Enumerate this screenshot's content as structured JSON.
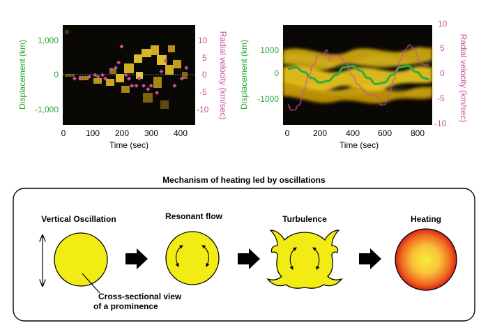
{
  "chart_data": [
    {
      "type": "scatter",
      "xlabel": "Time (sec)",
      "ylabel_left": "Displacement (km)",
      "ylabel_right": "Radial velocity (km/sec)",
      "x_ticks": [
        "0",
        "100",
        "200",
        "300",
        "400"
      ],
      "y_left_ticks": [
        "1,000",
        "0",
        "-1,000"
      ],
      "y_right_ticks": [
        "10",
        "5",
        "0",
        "-5",
        "-10"
      ],
      "xlim": [
        0,
        450
      ],
      "ylim_left": [
        -1400,
        1400
      ],
      "ylim_right": [
        -14,
        14
      ],
      "series": [
        {
          "x": [
            40,
            60,
            90,
            110,
            120,
            135,
            145,
            165,
            180,
            190,
            200,
            215,
            225,
            235,
            250,
            260,
            275,
            290,
            300,
            320,
            335,
            350,
            380,
            405,
            420
          ],
          "y": [
            -1,
            -1,
            -0.5,
            0,
            -0.5,
            0,
            -1,
            1.5,
            2,
            3.5,
            8,
            0,
            -1,
            -3,
            -3,
            -1,
            -3,
            -4,
            -3,
            -5,
            1,
            4,
            -3,
            -1,
            2
          ]
        }
      ]
    },
    {
      "type": "line",
      "xlabel": "Time (sec)",
      "ylabel_left": "Displacement (km)",
      "ylabel_right": "Radial velocity (km/sec)",
      "x_ticks": [
        "0",
        "200",
        "400",
        "600",
        "800"
      ],
      "y_left_ticks": [
        "1000",
        "0",
        "-1000"
      ],
      "y_right_ticks": [
        "10",
        "5",
        "0",
        "-5",
        "-10"
      ],
      "xlim": [
        -30,
        900
      ],
      "ylim_left": [
        -1650,
        1650
      ],
      "ylim_right": [
        -10,
        10
      ],
      "series": [
        {
          "x": [
            0,
            20,
            40,
            70,
            100,
            130,
            160,
            190,
            220,
            240,
            260,
            280,
            300,
            330,
            360,
            400,
            440,
            470,
            500,
            520,
            540,
            560,
            580,
            600,
            620,
            640,
            660,
            680,
            700,
            730,
            760,
            790,
            820,
            850,
            880
          ],
          "y": [
            -6,
            -7,
            -7,
            -6,
            -3,
            0,
            2,
            4,
            4,
            5,
            3,
            4,
            4,
            3.5,
            2.5,
            0,
            -2,
            -3,
            -4,
            -4,
            -4,
            -4.5,
            -6,
            -6,
            -5,
            -3,
            -1,
            1,
            3,
            5,
            6,
            5,
            3,
            2,
            2
          ]
        },
        {
          "x": [
            0,
            50,
            100,
            150,
            200,
            250,
            300,
            350,
            400,
            450,
            500,
            550,
            600,
            650,
            700,
            750,
            800,
            850,
            880
          ],
          "y": [
            200,
            250,
            100,
            -100,
            -250,
            -200,
            0,
            250,
            300,
            150,
            -100,
            -300,
            -250,
            0,
            250,
            300,
            100,
            -100,
            -150
          ]
        }
      ]
    }
  ],
  "diagram": {
    "title": "Mechanism of heating led by oscillations",
    "stages": [
      "Vertical Oscillation",
      "Resonant flow",
      "Turbulence",
      "Heating"
    ],
    "annotation_line1": "Cross-sectional view",
    "annotation_line2": "of a prominence"
  },
  "colors": {
    "displacement_axis": "#2aa832",
    "velocity_axis": "#c8509c",
    "prominence_fill": "#f2ec14",
    "arrow": "#000000"
  }
}
